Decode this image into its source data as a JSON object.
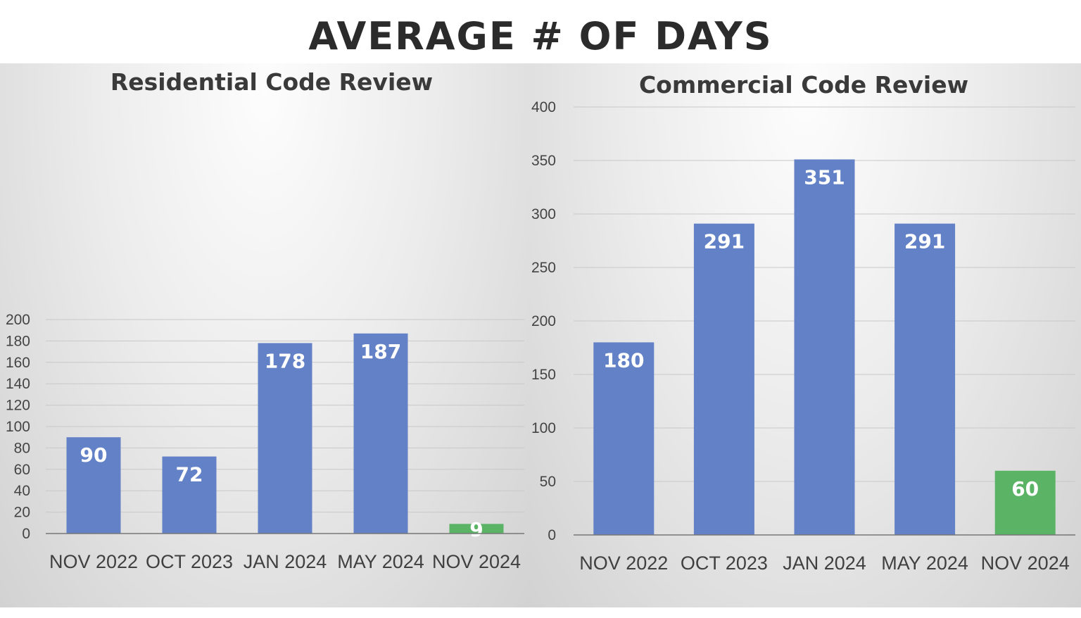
{
  "title": "AVERAGE # OF DAYS",
  "colors": {
    "bar": "#6381c6",
    "highlight": "#5bb366",
    "grid": "#c8c8c8"
  },
  "chart_data": [
    {
      "type": "bar",
      "title": "Residential Code Review",
      "categories": [
        "NOV 2022",
        "OCT 2023",
        "JAN 2024",
        "MAY 2024",
        "NOV 2024"
      ],
      "values": [
        90,
        72,
        178,
        187,
        9
      ],
      "bar_colors": [
        "#6381c6",
        "#6381c6",
        "#6381c6",
        "#6381c6",
        "#5bb366"
      ],
      "ylim": [
        0,
        200
      ],
      "yticks": [
        0,
        20,
        40,
        60,
        80,
        100,
        120,
        140,
        160,
        180,
        200
      ],
      "grid": true,
      "data_labels": true
    },
    {
      "type": "bar",
      "title": "Commercial Code Review",
      "categories": [
        "NOV 2022",
        "OCT 2023",
        "JAN 2024",
        "MAY 2024",
        "NOV 2024"
      ],
      "values": [
        180,
        291,
        351,
        291,
        60
      ],
      "bar_colors": [
        "#6381c6",
        "#6381c6",
        "#6381c6",
        "#6381c6",
        "#5bb366"
      ],
      "ylim": [
        0,
        400
      ],
      "yticks": [
        0,
        50,
        100,
        150,
        200,
        250,
        300,
        350,
        400
      ],
      "grid": true,
      "data_labels": true
    }
  ]
}
